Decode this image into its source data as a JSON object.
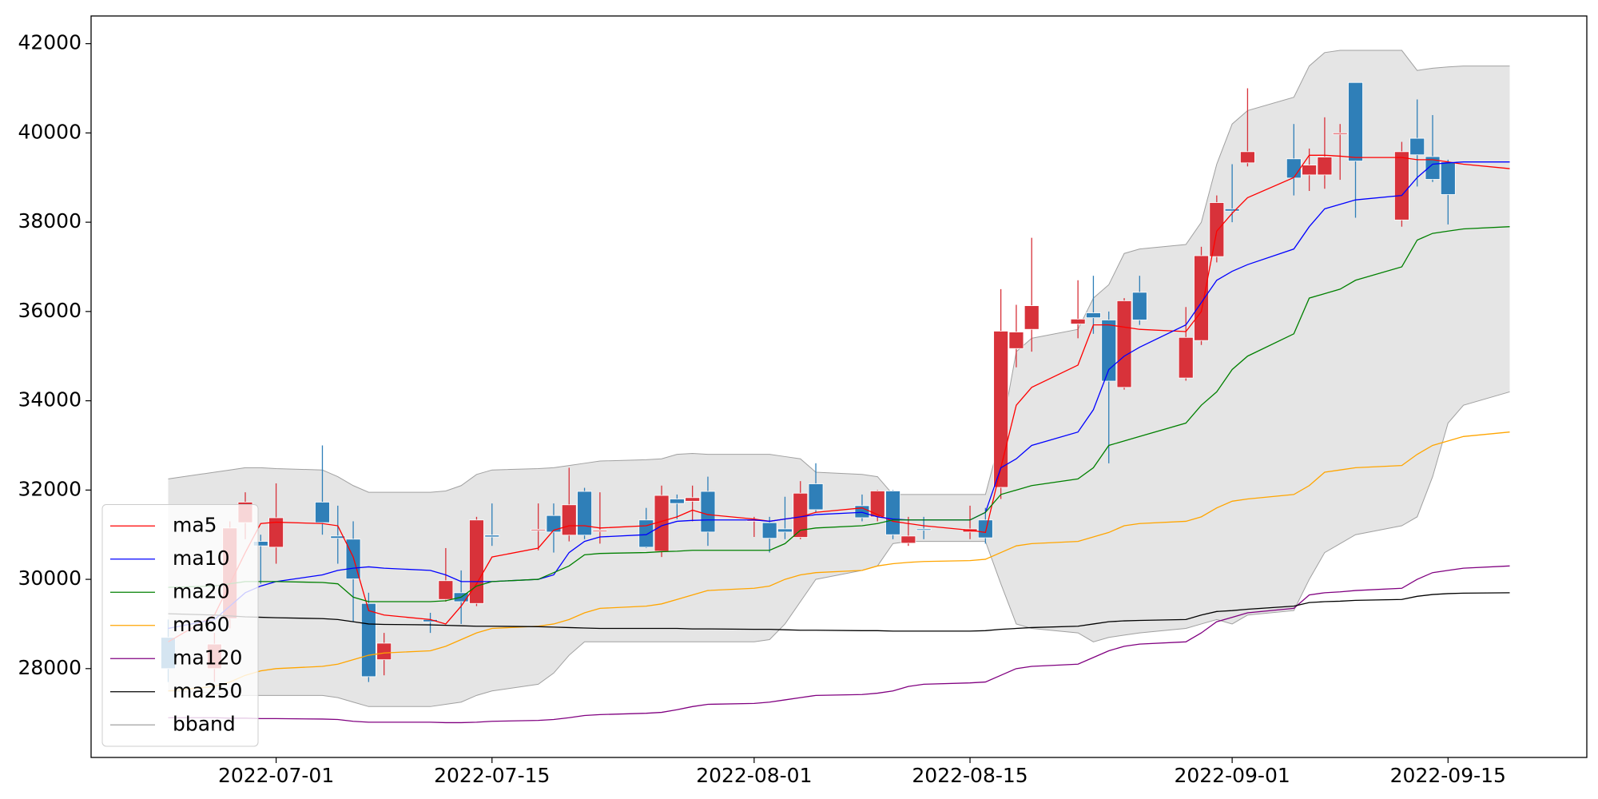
{
  "chart_data": {
    "type": "candlestick",
    "x": [
      "2022-06-24",
      "2022-06-27",
      "2022-06-28",
      "2022-06-29",
      "2022-06-30",
      "2022-07-01",
      "2022-07-04",
      "2022-07-05",
      "2022-07-06",
      "2022-07-07",
      "2022-07-08",
      "2022-07-11",
      "2022-07-12",
      "2022-07-13",
      "2022-07-14",
      "2022-07-15",
      "2022-07-18",
      "2022-07-19",
      "2022-07-20",
      "2022-07-21",
      "2022-07-22",
      "2022-07-25",
      "2022-07-26",
      "2022-07-27",
      "2022-07-28",
      "2022-07-29",
      "2022-08-01",
      "2022-08-02",
      "2022-08-03",
      "2022-08-04",
      "2022-08-05",
      "2022-08-08",
      "2022-08-09",
      "2022-08-10",
      "2022-08-11",
      "2022-08-12",
      "2022-08-15",
      "2022-08-16",
      "2022-08-17",
      "2022-08-18",
      "2022-08-19",
      "2022-08-22",
      "2022-08-23",
      "2022-08-24",
      "2022-08-25",
      "2022-08-26",
      "2022-08-29",
      "2022-08-30",
      "2022-08-31",
      "2022-09-01",
      "2022-09-02",
      "2022-09-05",
      "2022-09-06",
      "2022-09-07",
      "2022-09-08",
      "2022-09-09",
      "2022-09-12",
      "2022-09-13",
      "2022-09-14",
      "2022-09-15",
      "2022-09-16",
      "2022-09-19"
    ],
    "xlim": [
      "2022-06-19",
      "2022-09-24"
    ],
    "xticks": [
      "2022-07-01",
      "2022-07-15",
      "2022-08-01",
      "2022-08-15",
      "2022-09-01",
      "2022-09-15"
    ],
    "ylim": [
      26010,
      42620
    ],
    "yticks": [
      28000,
      30000,
      32000,
      34000,
      36000,
      38000,
      40000,
      42000
    ],
    "candles": {
      "up_color": "#d8323a",
      "down_color": "#2f7fb8",
      "open": [
        28700,
        28000,
        29120,
        31270,
        30850,
        30720,
        31730,
        30970,
        30900,
        29460,
        28200,
        29100,
        29550,
        29700,
        29460,
        30990,
        31100,
        31430,
        30990,
        31970,
        31090,
        31330,
        30630,
        31800,
        31750,
        31970,
        31310,
        31270,
        31130,
        30940,
        32140,
        31650,
        31400,
        31980,
        30810,
        31130,
        31060,
        31330,
        32060,
        35170,
        35600,
        35720,
        35970,
        35810,
        34300,
        36430,
        34510,
        35350,
        37230,
        38300,
        39330,
        39420,
        39060,
        39060,
        39970,
        41130,
        38050,
        39880,
        39470,
        39350,
        null,
        null
      ],
      "close": [
        28000,
        28550,
        31150,
        31730,
        30750,
        31380,
        31270,
        30920,
        30010,
        27820,
        28570,
        29050,
        29970,
        29500,
        31330,
        30950,
        31120,
        31060,
        31670,
        30990,
        31100,
        30720,
        31880,
        31700,
        31830,
        31060,
        31330,
        30920,
        31060,
        31930,
        31560,
        31380,
        31980,
        31000,
        30970,
        31100,
        31130,
        30930,
        35560,
        35540,
        36130,
        35830,
        35860,
        34440,
        36240,
        35810,
        35420,
        37250,
        38440,
        38250,
        39580,
        38990,
        39280,
        39460,
        40000,
        39370,
        39580,
        39510,
        38960,
        38620,
        null,
        null
      ],
      "high": [
        29100,
        28800,
        31300,
        31950,
        31000,
        32150,
        33000,
        31650,
        31300,
        29700,
        28800,
        29250,
        30700,
        30200,
        31400,
        31700,
        31700,
        31700,
        32500,
        32050,
        31950,
        31600,
        32100,
        31900,
        32100,
        32300,
        31400,
        31400,
        31850,
        32200,
        32600,
        31900,
        32000,
        32000,
        31400,
        31400,
        31650,
        31600,
        36500,
        36150,
        37650,
        36700,
        36800,
        36000,
        36300,
        36800,
        36100,
        37450,
        38600,
        39300,
        41000,
        40200,
        39650,
        40350,
        40200,
        41130,
        39800,
        40750,
        40400,
        39400,
        null,
        null
      ],
      "low": [
        27700,
        27700,
        28900,
        30900,
        29900,
        30350,
        31000,
        30350,
        29050,
        27700,
        27850,
        28800,
        29500,
        29000,
        29400,
        30750,
        30650,
        30600,
        30850,
        30900,
        30800,
        30700,
        30500,
        31350,
        31300,
        30750,
        30950,
        30600,
        30900,
        30900,
        31500,
        31300,
        31300,
        30900,
        30750,
        30900,
        30900,
        30800,
        31800,
        34750,
        35100,
        35400,
        35500,
        32600,
        34250,
        35700,
        34450,
        35250,
        37100,
        38000,
        39250,
        38600,
        38700,
        38750,
        38950,
        38100,
        37900,
        38800,
        38900,
        37950,
        null,
        null
      ]
    },
    "series": [
      {
        "name": "ma5",
        "color": "#ff0000",
        "values": [
          28600,
          29200,
          29900,
          30600,
          31250,
          31280,
          31250,
          31200,
          30500,
          29300,
          29200,
          29100,
          29000,
          29400,
          29900,
          30500,
          30700,
          31100,
          31200,
          31200,
          31150,
          31200,
          31300,
          31400,
          31550,
          31450,
          31350,
          31300,
          31350,
          31400,
          31500,
          31600,
          31450,
          31300,
          31250,
          31200,
          31100,
          31050,
          32500,
          33900,
          34300,
          34800,
          35700,
          35700,
          35650,
          35600,
          35550,
          36000,
          37800,
          38200,
          38550,
          39000,
          39500,
          39500,
          39480,
          39450,
          39450,
          39400,
          39400,
          39350,
          39300,
          39200
        ]
      },
      {
        "name": "ma10",
        "color": "#0000ff",
        "values": [
          28900,
          29100,
          29400,
          29700,
          29850,
          29950,
          30100,
          30200,
          30250,
          30280,
          30250,
          30200,
          30100,
          29950,
          29950,
          29950,
          30000,
          30100,
          30600,
          30850,
          30950,
          31000,
          31200,
          31300,
          31320,
          31330,
          31330,
          31300,
          31350,
          31400,
          31450,
          31500,
          31400,
          31350,
          31330,
          31330,
          31330,
          31500,
          32500,
          32700,
          33000,
          33300,
          33800,
          34700,
          35000,
          35200,
          35700,
          36200,
          36700,
          36900,
          37050,
          37400,
          37900,
          38300,
          38400,
          38500,
          38600,
          39000,
          39300,
          39330,
          39350,
          39350
        ]
      },
      {
        "name": "ma20",
        "color": "#008000",
        "values": [
          29820,
          29850,
          29900,
          29950,
          29950,
          29950,
          29930,
          29900,
          29600,
          29500,
          29500,
          29500,
          29520,
          29600,
          29850,
          29950,
          30000,
          30150,
          30300,
          30550,
          30580,
          30600,
          30620,
          30630,
          30650,
          30650,
          30650,
          30650,
          30800,
          31100,
          31150,
          31200,
          31250,
          31330,
          31330,
          31330,
          31330,
          31500,
          31900,
          32000,
          32100,
          32250,
          32500,
          33000,
          33100,
          33200,
          33500,
          33900,
          34200,
          34700,
          35000,
          35500,
          36300,
          36400,
          36500,
          36700,
          37000,
          37600,
          37750,
          37800,
          37850,
          37900
        ]
      },
      {
        "name": "ma60",
        "color": "#ffa500",
        "values": [
          27500,
          27600,
          27700,
          27850,
          27950,
          28000,
          28050,
          28100,
          28200,
          28300,
          28350,
          28400,
          28500,
          28650,
          28800,
          28900,
          28950,
          29000,
          29100,
          29250,
          29350,
          29400,
          29450,
          29550,
          29650,
          29750,
          29800,
          29850,
          30000,
          30100,
          30150,
          30200,
          30300,
          30350,
          30380,
          30400,
          30420,
          30450,
          30600,
          30750,
          30800,
          30850,
          30950,
          31050,
          31200,
          31250,
          31300,
          31400,
          31600,
          31750,
          31800,
          31900,
          32100,
          32400,
          32450,
          32500,
          32550,
          32800,
          33000,
          33100,
          33200,
          33300
        ]
      },
      {
        "name": "ma120",
        "color": "#800080",
        "values": [
          26900,
          26900,
          26890,
          26890,
          26880,
          26880,
          26870,
          26860,
          26820,
          26800,
          26800,
          26800,
          26790,
          26790,
          26800,
          26820,
          26840,
          26860,
          26900,
          26950,
          26970,
          27000,
          27020,
          27080,
          27150,
          27200,
          27220,
          27250,
          27300,
          27350,
          27400,
          27420,
          27450,
          27500,
          27600,
          27650,
          27680,
          27700,
          27850,
          28000,
          28050,
          28100,
          28250,
          28400,
          28500,
          28550,
          28600,
          28800,
          29050,
          29150,
          29250,
          29350,
          29650,
          29700,
          29720,
          29750,
          29800,
          30000,
          30150,
          30200,
          30250,
          30300
        ]
      },
      {
        "name": "ma250",
        "color": "#000000",
        "values": [
          29230,
          29200,
          29180,
          29160,
          29150,
          29140,
          29120,
          29100,
          29050,
          29000,
          28990,
          28980,
          28970,
          28960,
          28950,
          28950,
          28940,
          28930,
          28920,
          28910,
          28900,
          28900,
          28900,
          28900,
          28890,
          28890,
          28880,
          28880,
          28870,
          28860,
          28860,
          28850,
          28850,
          28840,
          28840,
          28840,
          28840,
          28850,
          28880,
          28900,
          28920,
          28950,
          29000,
          29050,
          29070,
          29080,
          29100,
          29200,
          29280,
          29300,
          29330,
          29400,
          29480,
          29500,
          29510,
          29530,
          29550,
          29620,
          29660,
          29680,
          29690,
          29700
        ]
      }
    ],
    "band": {
      "name": "bband",
      "color": "#e5e5e5",
      "edge_color": "#a0a0a0",
      "upper": [
        32250,
        32400,
        32450,
        32500,
        32500,
        32480,
        32450,
        32300,
        32100,
        31950,
        31950,
        31950,
        31980,
        32100,
        32350,
        32450,
        32480,
        32500,
        32550,
        32600,
        32650,
        32680,
        32700,
        32800,
        32820,
        32800,
        32800,
        32800,
        32750,
        32700,
        32400,
        32350,
        32300,
        31900,
        31900,
        31900,
        31900,
        31900,
        33200,
        35100,
        35400,
        35600,
        36300,
        36600,
        37300,
        37400,
        37500,
        38000,
        39300,
        40200,
        40500,
        40800,
        41500,
        41800,
        41850,
        41850,
        41850,
        41400,
        41450,
        41480,
        41500,
        41500
      ],
      "lower": [
        27500,
        27450,
        27400,
        27400,
        27400,
        27400,
        27400,
        27350,
        27250,
        27150,
        27150,
        27150,
        27200,
        27250,
        27400,
        27500,
        27650,
        27900,
        28300,
        28600,
        28600,
        28600,
        28600,
        28600,
        28600,
        28600,
        28600,
        28650,
        29000,
        29500,
        30000,
        30200,
        30300,
        30800,
        30850,
        30850,
        30850,
        30850,
        29900,
        29000,
        28900,
        28800,
        28600,
        28700,
        28750,
        28800,
        28900,
        29000,
        29100,
        29000,
        29200,
        29300,
        30000,
        30600,
        30800,
        31000,
        31200,
        31400,
        32300,
        33500,
        33900,
        34200
      ]
    },
    "legend": "lower left"
  }
}
